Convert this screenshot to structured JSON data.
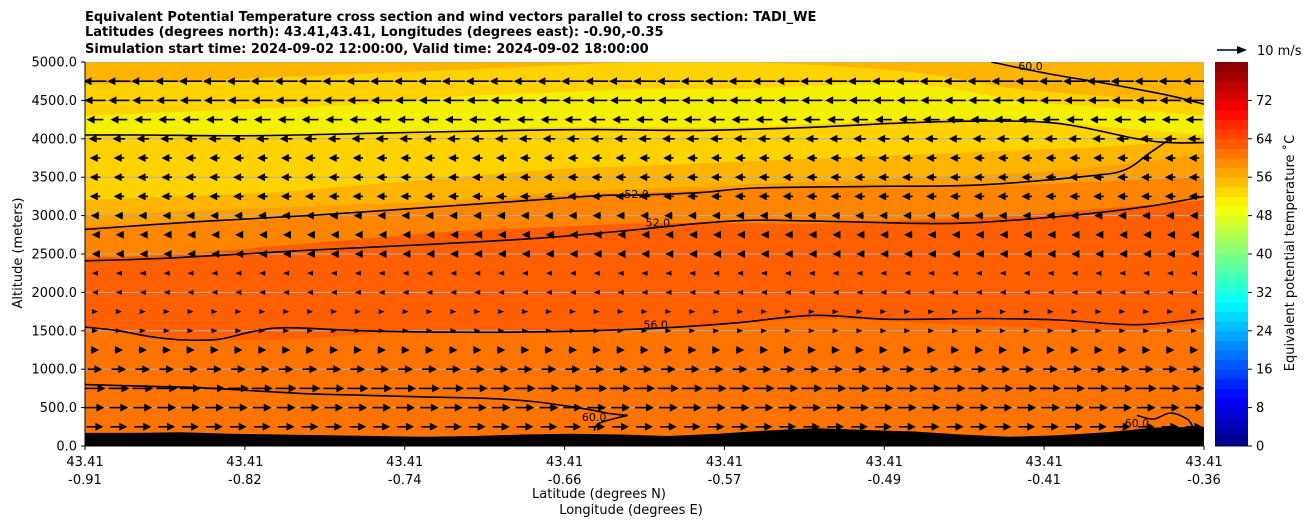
{
  "title_lines": [
    "Equivalent Potential Temperature cross section and wind vectors parallel to cross section: TADI_WE",
    "Latitudes (degrees north): 43.41,43.41, Longitudes (degrees east): -0.90,-0.35",
    "Simulation start time: 2024-09-02 12:00:00, Valid time: 2024-09-02 18:00:00"
  ],
  "chart_data": {
    "type": "contourf",
    "ylabel": "Altitude (meters)",
    "xlabel_lines": [
      "Latitude (degrees N)",
      "Longitude (degrees E)"
    ],
    "ylim": [
      0,
      5000
    ],
    "y_ticks": [
      "0.0",
      "500.0",
      "1000.0",
      "1500.0",
      "2000.0",
      "2500.0",
      "3000.0",
      "3500.0",
      "4000.0",
      "4500.0",
      "5000.0"
    ],
    "y_tick_values": [
      0,
      500,
      1000,
      1500,
      2000,
      2500,
      3000,
      3500,
      4000,
      4500,
      5000
    ],
    "x_tick_lat": [
      "43.41",
      "43.41",
      "43.41",
      "43.41",
      "43.41",
      "43.41",
      "43.41",
      "43.41"
    ],
    "x_tick_lon": [
      "-0.91",
      "-0.82",
      "-0.74",
      "-0.66",
      "-0.57",
      "-0.49",
      "-0.41",
      "-0.36"
    ],
    "grid": "horizontal",
    "colorbar": {
      "label": "Equivalent potential temperature ˚C",
      "ticks": [
        "0",
        "8",
        "16",
        "24",
        "32",
        "40",
        "48",
        "56",
        "64",
        "72"
      ],
      "tick_values": [
        0,
        8,
        16,
        24,
        32,
        40,
        48,
        56,
        64,
        72
      ],
      "range": [
        0,
        80
      ],
      "levels": 40,
      "colormap": "jet"
    },
    "quiver_key": {
      "label": "10 m/s",
      "speed": 10
    },
    "filled_bands": [
      {
        "theta_e": 61,
        "color": "#ff5f00",
        "boundary_alt": [
          1550,
          1400,
          1380,
          1450,
          1500,
          1480,
          1520,
          1600,
          1650,
          1600,
          1550,
          1500,
          1600
        ]
      },
      {
        "theta_e": 59,
        "color": "#ff8500",
        "boundary_alt": [
          2450,
          2500,
          2600,
          2700,
          2800,
          2850,
          2900,
          2900,
          2900,
          2950,
          3000,
          3100,
          3200
        ]
      },
      {
        "theta_e": 57,
        "color": "#ff9f00",
        "boundary_alt": [
          2850,
          2900,
          2950,
          3050,
          3150,
          3250,
          3300,
          3350,
          3380,
          3380,
          3400,
          3450,
          3500
        ]
      },
      {
        "theta_e": 55,
        "color": "#ffb400",
        "boundary_alt": [
          3000,
          3050,
          3100,
          3150,
          3200,
          3300,
          3350,
          3400,
          3450,
          3500,
          3550,
          3650,
          3800
        ]
      },
      {
        "theta_e": 53,
        "color": "#ffd200",
        "boundary_alt": [
          3200,
          3250,
          3300,
          3400,
          3500,
          3600,
          3650,
          3700,
          3750,
          3800,
          3850,
          3900,
          4000
        ]
      },
      {
        "theta_e": 51,
        "color": "#f4f000",
        "boundary_alt": [
          4050,
          4050,
          4050,
          4080,
          4100,
          4150,
          4150,
          4150,
          4200,
          4250,
          4250,
          4150,
          4050
        ]
      },
      {
        "theta_e": 53,
        "color": "#ffd200",
        "boundary_alt": [
          4300,
          4350,
          4400,
          4450,
          4550,
          4600,
          4650,
          4650,
          4700,
          4700,
          4500,
          4400,
          4300
        ]
      },
      {
        "theta_e": 55,
        "color": "#ffb400",
        "boundary_alt": [
          4700,
          4750,
          4800,
          4850,
          4900,
          4950,
          5000,
          5000,
          4950,
          4850,
          4650,
          4550,
          4450
        ]
      }
    ],
    "contours": [
      {
        "label": "52.0",
        "points": [
          [
            0,
            4050
          ],
          [
            0.05,
            4050
          ],
          [
            0.15,
            4040
          ],
          [
            0.25,
            4070
          ],
          [
            0.35,
            4100
          ],
          [
            0.45,
            4120
          ],
          [
            0.55,
            4110
          ],
          [
            0.65,
            4150
          ],
          [
            0.72,
            4200
          ],
          [
            0.8,
            4230
          ],
          [
            0.87,
            4200
          ],
          [
            0.94,
            4000
          ],
          [
            0.97,
            3950
          ],
          [
            1.0,
            3950
          ]
        ]
      },
      {
        "label": "52.0",
        "points": [
          [
            0.97,
            4000
          ],
          [
            0.95,
            3800
          ],
          [
            0.93,
            3600
          ],
          [
            0.9,
            3520
          ],
          [
            0.8,
            3400
          ],
          [
            0.7,
            3380
          ],
          [
            0.6,
            3360
          ],
          [
            0.55,
            3300
          ],
          [
            0.5,
            3270
          ],
          [
            0.46,
            3260
          ],
          [
            0.4,
            3200
          ],
          [
            0.3,
            3100
          ],
          [
            0.2,
            3000
          ],
          [
            0.1,
            2920
          ],
          [
            0,
            2820
          ]
        ]
      },
      {
        "label": "56.0",
        "points": [
          [
            0,
            2410
          ],
          [
            0.08,
            2450
          ],
          [
            0.2,
            2550
          ],
          [
            0.3,
            2620
          ],
          [
            0.4,
            2700
          ],
          [
            0.48,
            2800
          ],
          [
            0.55,
            2900
          ],
          [
            0.6,
            2940
          ],
          [
            0.68,
            2920
          ],
          [
            0.78,
            2900
          ],
          [
            0.88,
            3000
          ],
          [
            0.95,
            3120
          ],
          [
            1.0,
            3250
          ]
        ]
      },
      {
        "label": "60.0",
        "points": [
          [
            0,
            1550
          ],
          [
            0.03,
            1500
          ],
          [
            0.06,
            1420
          ],
          [
            0.09,
            1380
          ],
          [
            0.12,
            1390
          ],
          [
            0.15,
            1490
          ],
          [
            0.18,
            1540
          ],
          [
            0.25,
            1500
          ],
          [
            0.35,
            1480
          ],
          [
            0.45,
            1500
          ],
          [
            0.52,
            1540
          ],
          [
            0.58,
            1600
          ],
          [
            0.65,
            1700
          ],
          [
            0.72,
            1650
          ],
          [
            0.8,
            1660
          ],
          [
            0.87,
            1640
          ],
          [
            0.94,
            1580
          ],
          [
            1.0,
            1660
          ]
        ]
      },
      {
        "label": "60.0",
        "points": [
          [
            0,
            800
          ],
          [
            0.05,
            780
          ],
          [
            0.1,
            760
          ],
          [
            0.15,
            720
          ],
          [
            0.2,
            680
          ],
          [
            0.25,
            660
          ],
          [
            0.3,
            640
          ],
          [
            0.36,
            620
          ],
          [
            0.4,
            580
          ],
          [
            0.44,
            500
          ],
          [
            0.47,
            420
          ],
          [
            0.485,
            400
          ]
        ]
      },
      {
        "label": "60.0",
        "points": [
          [
            0.485,
            400
          ],
          [
            0.46,
            300
          ],
          [
            0.455,
            200
          ]
        ]
      },
      {
        "label": "56.0",
        "points": [
          [
            0.81,
            5000
          ],
          [
            0.86,
            4850
          ],
          [
            0.92,
            4700
          ],
          [
            0.97,
            4560
          ],
          [
            1.0,
            4450
          ]
        ]
      },
      {
        "label": "60.0",
        "points": [
          [
            0.94,
            400
          ],
          [
            0.955,
            350
          ],
          [
            0.97,
            430
          ],
          [
            0.985,
            350
          ],
          [
            0.99,
            250
          ]
        ]
      }
    ],
    "contour_label_positions": [
      [
        0.493,
        3280
      ],
      [
        0.512,
        2910
      ],
      [
        0.51,
        1580
      ],
      [
        0.455,
        380
      ],
      [
        0.845,
        4950
      ],
      [
        0.94,
        300
      ]
    ],
    "terrain_alt": [
      170,
      170,
      180,
      160,
      150,
      140,
      130,
      120,
      130,
      150,
      160,
      150,
      130,
      160,
      200,
      230,
      210,
      190,
      150,
      120,
      140,
      180,
      240,
      250
    ],
    "wind_u_profile": [
      {
        "alt": 250,
        "u": 8
      },
      {
        "alt": 500,
        "u": 9
      },
      {
        "alt": 750,
        "u": 10
      },
      {
        "alt": 1000,
        "u": 7
      },
      {
        "alt": 1250,
        "u": 4
      },
      {
        "alt": 1500,
        "u": 2
      },
      {
        "alt": 1750,
        "u": 1
      },
      {
        "alt": 2000,
        "u": -1
      },
      {
        "alt": 2250,
        "u": -2
      },
      {
        "alt": 2500,
        "u": -3
      },
      {
        "alt": 2750,
        "u": -3
      },
      {
        "alt": 3000,
        "u": -4
      },
      {
        "alt": 3250,
        "u": -5
      },
      {
        "alt": 3500,
        "u": -5
      },
      {
        "alt": 3750,
        "u": -5
      },
      {
        "alt": 4000,
        "u": -6
      },
      {
        "alt": 4250,
        "u": -8
      },
      {
        "alt": 4500,
        "u": -10
      },
      {
        "alt": 4750,
        "u": -11
      }
    ]
  }
}
